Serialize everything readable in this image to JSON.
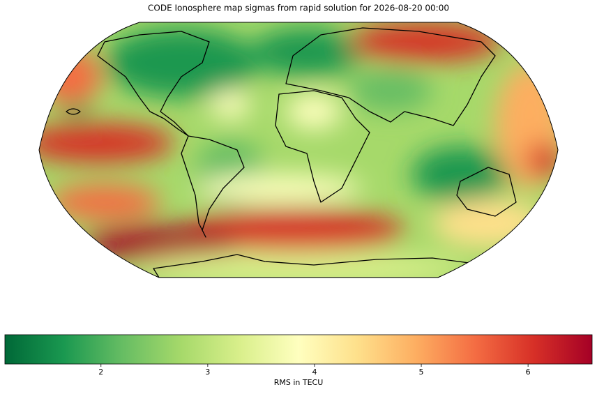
{
  "title": "CODE Ionosphere map sigmas from rapid solution for 2026-08-20 00:00",
  "colorbar": {
    "label": "RMS in TECU",
    "lim": [
      1.1,
      6.6
    ],
    "ticks": [
      2,
      3,
      4,
      5,
      6
    ],
    "colormap": [
      "#006837",
      "#1a9850",
      "#66bd63",
      "#a6d96a",
      "#d9ef8b",
      "#ffffbf",
      "#fee08b",
      "#fdae61",
      "#f46d43",
      "#d73027",
      "#a50026"
    ]
  }
}
